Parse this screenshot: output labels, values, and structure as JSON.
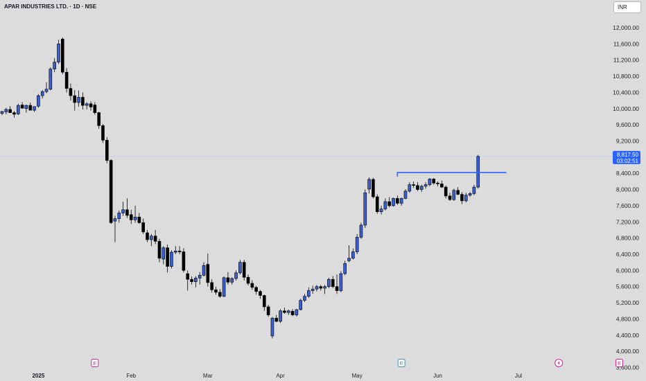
{
  "header": {
    "title": "APAR INDUSTRIES LTD. · 1D · NSE",
    "currency_button": "INR"
  },
  "price_marker": {
    "price": "8,817.50",
    "countdown": "03:02:51",
    "color": "#2962ff"
  },
  "colors": {
    "up": "#3a5fd0",
    "down": "#000000",
    "background": "#dcdcdc",
    "event_pink": "#d02690",
    "event_teal": "#3f8fa5"
  },
  "events": [
    {
      "kind": "earnings",
      "label": "E",
      "date_index": 23
    },
    {
      "kind": "earnings",
      "label": "E",
      "date_index": 99
    },
    {
      "kind": "dividend",
      "icon": "lightning-icon",
      "date_index": 138
    },
    {
      "kind": "earnings",
      "label": "E",
      "date_index": 153
    }
  ],
  "chart_data": {
    "type": "candlestick",
    "title": "APAR INDUSTRIES LTD. · 1D · NSE",
    "currency": "INR",
    "y_ticks": [
      "3,600.00",
      "4,000.00",
      "4,400.00",
      "4,800.00",
      "5,200.00",
      "5,600.00",
      "6,000.00",
      "6,400.00",
      "6,800.00",
      "7,200.00",
      "7,600.00",
      "8,000.00",
      "8,400.00",
      "8,800.00",
      "9,200.00",
      "9,600.00",
      "10,000.00",
      "10,400.00",
      "10,800.00",
      "11,200.00",
      "11,600.00",
      "12,000.00"
    ],
    "ylim": [
      3600,
      12000
    ],
    "x_ticks": [
      {
        "label": "2025",
        "index": 9,
        "bold": true
      },
      {
        "label": "Feb",
        "index": 32
      },
      {
        "label": "Mar",
        "index": 51
      },
      {
        "label": "Apr",
        "index": 69
      },
      {
        "label": "May",
        "index": 88
      },
      {
        "label": "Jun",
        "index": 108
      },
      {
        "label": "Jul",
        "index": 128
      }
    ],
    "horizontal_line": {
      "value": 8420,
      "from_index": 98,
      "to_index": 125
    },
    "last_price": 8817.5,
    "candles": [
      [
        9880,
        9940,
        9840,
        9930
      ],
      [
        9920,
        10020,
        9860,
        9980
      ],
      [
        9980,
        10060,
        9900,
        9900
      ],
      [
        9900,
        9940,
        9780,
        9860
      ],
      [
        9870,
        10120,
        9840,
        10080
      ],
      [
        10090,
        10160,
        10000,
        10010
      ],
      [
        10000,
        10100,
        9900,
        10080
      ],
      [
        10080,
        10150,
        9980,
        9960
      ],
      [
        9960,
        10050,
        9920,
        10050
      ],
      [
        10060,
        10360,
        10020,
        10320
      ],
      [
        10320,
        10460,
        10250,
        10420
      ],
      [
        10420,
        10650,
        10380,
        10480
      ],
      [
        10480,
        11020,
        10450,
        10980
      ],
      [
        10980,
        11250,
        10900,
        11150
      ],
      [
        11150,
        11700,
        11100,
        11600
      ],
      [
        11720,
        11760,
        10850,
        10900
      ],
      [
        10900,
        11000,
        10400,
        10500
      ],
      [
        10500,
        10620,
        10200,
        10320
      ],
      [
        10320,
        10460,
        9950,
        10150
      ],
      [
        10150,
        10450,
        10050,
        10280
      ],
      [
        10280,
        10400,
        9980,
        10080
      ],
      [
        10080,
        10160,
        9980,
        10120
      ],
      [
        10120,
        10180,
        9950,
        10040
      ],
      [
        10090,
        10160,
        9850,
        9900
      ],
      [
        9900,
        9920,
        9500,
        9580
      ],
      [
        9580,
        9620,
        9150,
        9220
      ],
      [
        9220,
        9300,
        8650,
        8720
      ],
      [
        8720,
        8750,
        7150,
        7180
      ],
      [
        7220,
        7350,
        6700,
        7280
      ],
      [
        7280,
        7480,
        7180,
        7420
      ],
      [
        7420,
        7700,
        7350,
        7500
      ],
      [
        7500,
        7780,
        7300,
        7360
      ],
      [
        7380,
        7500,
        7150,
        7250
      ],
      [
        7250,
        7600,
        7180,
        7320
      ],
      [
        7320,
        7420,
        7150,
        7180
      ],
      [
        7180,
        7280,
        6900,
        6950
      ],
      [
        6930,
        7000,
        6700,
        6760
      ],
      [
        6760,
        6900,
        6600,
        6850
      ],
      [
        6850,
        7000,
        6650,
        6720
      ],
      [
        6720,
        6780,
        6200,
        6300
      ],
      [
        6280,
        6600,
        6150,
        6560
      ],
      [
        6560,
        6640,
        5950,
        6100
      ],
      [
        6100,
        6500,
        6050,
        6450
      ],
      [
        6450,
        6600,
        6400,
        6480
      ],
      [
        6480,
        6600,
        6400,
        6460
      ],
      [
        6460,
        6550,
        5950,
        6000
      ],
      [
        5920,
        6000,
        5500,
        5780
      ],
      [
        5780,
        5850,
        5650,
        5720
      ],
      [
        5720,
        5860,
        5580,
        5810
      ],
      [
        5810,
        5960,
        5650,
        5880
      ],
      [
        5880,
        6200,
        5850,
        6120
      ],
      [
        6150,
        6420,
        5600,
        5700
      ],
      [
        5700,
        5780,
        5450,
        5520
      ],
      [
        5520,
        5600,
        5400,
        5460
      ],
      [
        5460,
        5540,
        5320,
        5360
      ],
      [
        5360,
        5850,
        5340,
        5820
      ],
      [
        5820,
        5960,
        5650,
        5710
      ],
      [
        5710,
        5830,
        5650,
        5800
      ],
      [
        5800,
        6000,
        5750,
        5940
      ],
      [
        5940,
        6260,
        5900,
        6200
      ],
      [
        6200,
        6260,
        5750,
        5830
      ],
      [
        5830,
        5900,
        5630,
        5680
      ],
      [
        5680,
        5760,
        5520,
        5580
      ],
      [
        5580,
        5620,
        5400,
        5480
      ],
      [
        5480,
        5520,
        5300,
        5380
      ],
      [
        5380,
        5400,
        5000,
        5100
      ],
      [
        5100,
        5150,
        4850,
        4900
      ],
      [
        4380,
        4850,
        4320,
        4820
      ],
      [
        4820,
        4900,
        4720,
        4740
      ],
      [
        4740,
        5040,
        4700,
        5000
      ],
      [
        5000,
        5080,
        4930,
        4960
      ],
      [
        4960,
        5030,
        4900,
        5000
      ],
      [
        4990,
        5040,
        4870,
        4900
      ],
      [
        4900,
        5050,
        4860,
        5030
      ],
      [
        5030,
        5300,
        5010,
        5260
      ],
      [
        5260,
        5420,
        5220,
        5360
      ],
      [
        5360,
        5580,
        5320,
        5500
      ],
      [
        5500,
        5620,
        5420,
        5540
      ],
      [
        5540,
        5640,
        5480,
        5600
      ],
      [
        5600,
        5640,
        5500,
        5560
      ],
      [
        5560,
        5640,
        5420,
        5600
      ],
      [
        5600,
        5820,
        5560,
        5780
      ],
      [
        5780,
        5860,
        5560,
        5600
      ],
      [
        5600,
        5900,
        5420,
        5500
      ],
      [
        5500,
        5980,
        5460,
        5920
      ],
      [
        5920,
        6240,
        5880,
        6170
      ],
      [
        6240,
        6620,
        6200,
        6300
      ],
      [
        6300,
        6540,
        6270,
        6460
      ],
      [
        6460,
        6900,
        6400,
        6820
      ],
      [
        6820,
        7180,
        6780,
        7120
      ],
      [
        7120,
        8000,
        7050,
        7920
      ],
      [
        8010,
        8300,
        7900,
        8250
      ],
      [
        8250,
        8290,
        7780,
        7820
      ],
      [
        7820,
        7880,
        7400,
        7450
      ],
      [
        7450,
        7600,
        7380,
        7520
      ],
      [
        7520,
        7780,
        7480,
        7700
      ],
      [
        7700,
        7810,
        7560,
        7600
      ],
      [
        7600,
        7800,
        7580,
        7780
      ],
      [
        7780,
        7850,
        7620,
        7660
      ],
      [
        7660,
        7800,
        7600,
        7780
      ],
      [
        7780,
        8010,
        7760,
        7960
      ],
      [
        7960,
        8180,
        7920,
        8120
      ],
      [
        8120,
        8200,
        8040,
        8100
      ],
      [
        8100,
        8180,
        7960,
        8000
      ],
      [
        8000,
        8120,
        7940,
        8080
      ],
      [
        8080,
        8180,
        8020,
        8120
      ],
      [
        8120,
        8280,
        8080,
        8260
      ],
      [
        8260,
        8280,
        8120,
        8160
      ],
      [
        8160,
        8200,
        8080,
        8140
      ],
      [
        8140,
        8220,
        8040,
        8060
      ],
      [
        8060,
        8100,
        7780,
        7840
      ],
      [
        7840,
        7920,
        7720,
        7750
      ],
      [
        7750,
        8020,
        7720,
        7980
      ],
      [
        7980,
        8060,
        7860,
        7880
      ],
      [
        7880,
        7940,
        7640,
        7720
      ],
      [
        7720,
        7920,
        7680,
        7860
      ],
      [
        7860,
        7940,
        7820,
        7900
      ],
      [
        7900,
        8120,
        7860,
        8060
      ],
      [
        8060,
        8860,
        8020,
        8817.5
      ]
    ],
    "candle_timeline": "daily sessions; candle i is trading day i, x_ticks give the day index of each month label"
  }
}
